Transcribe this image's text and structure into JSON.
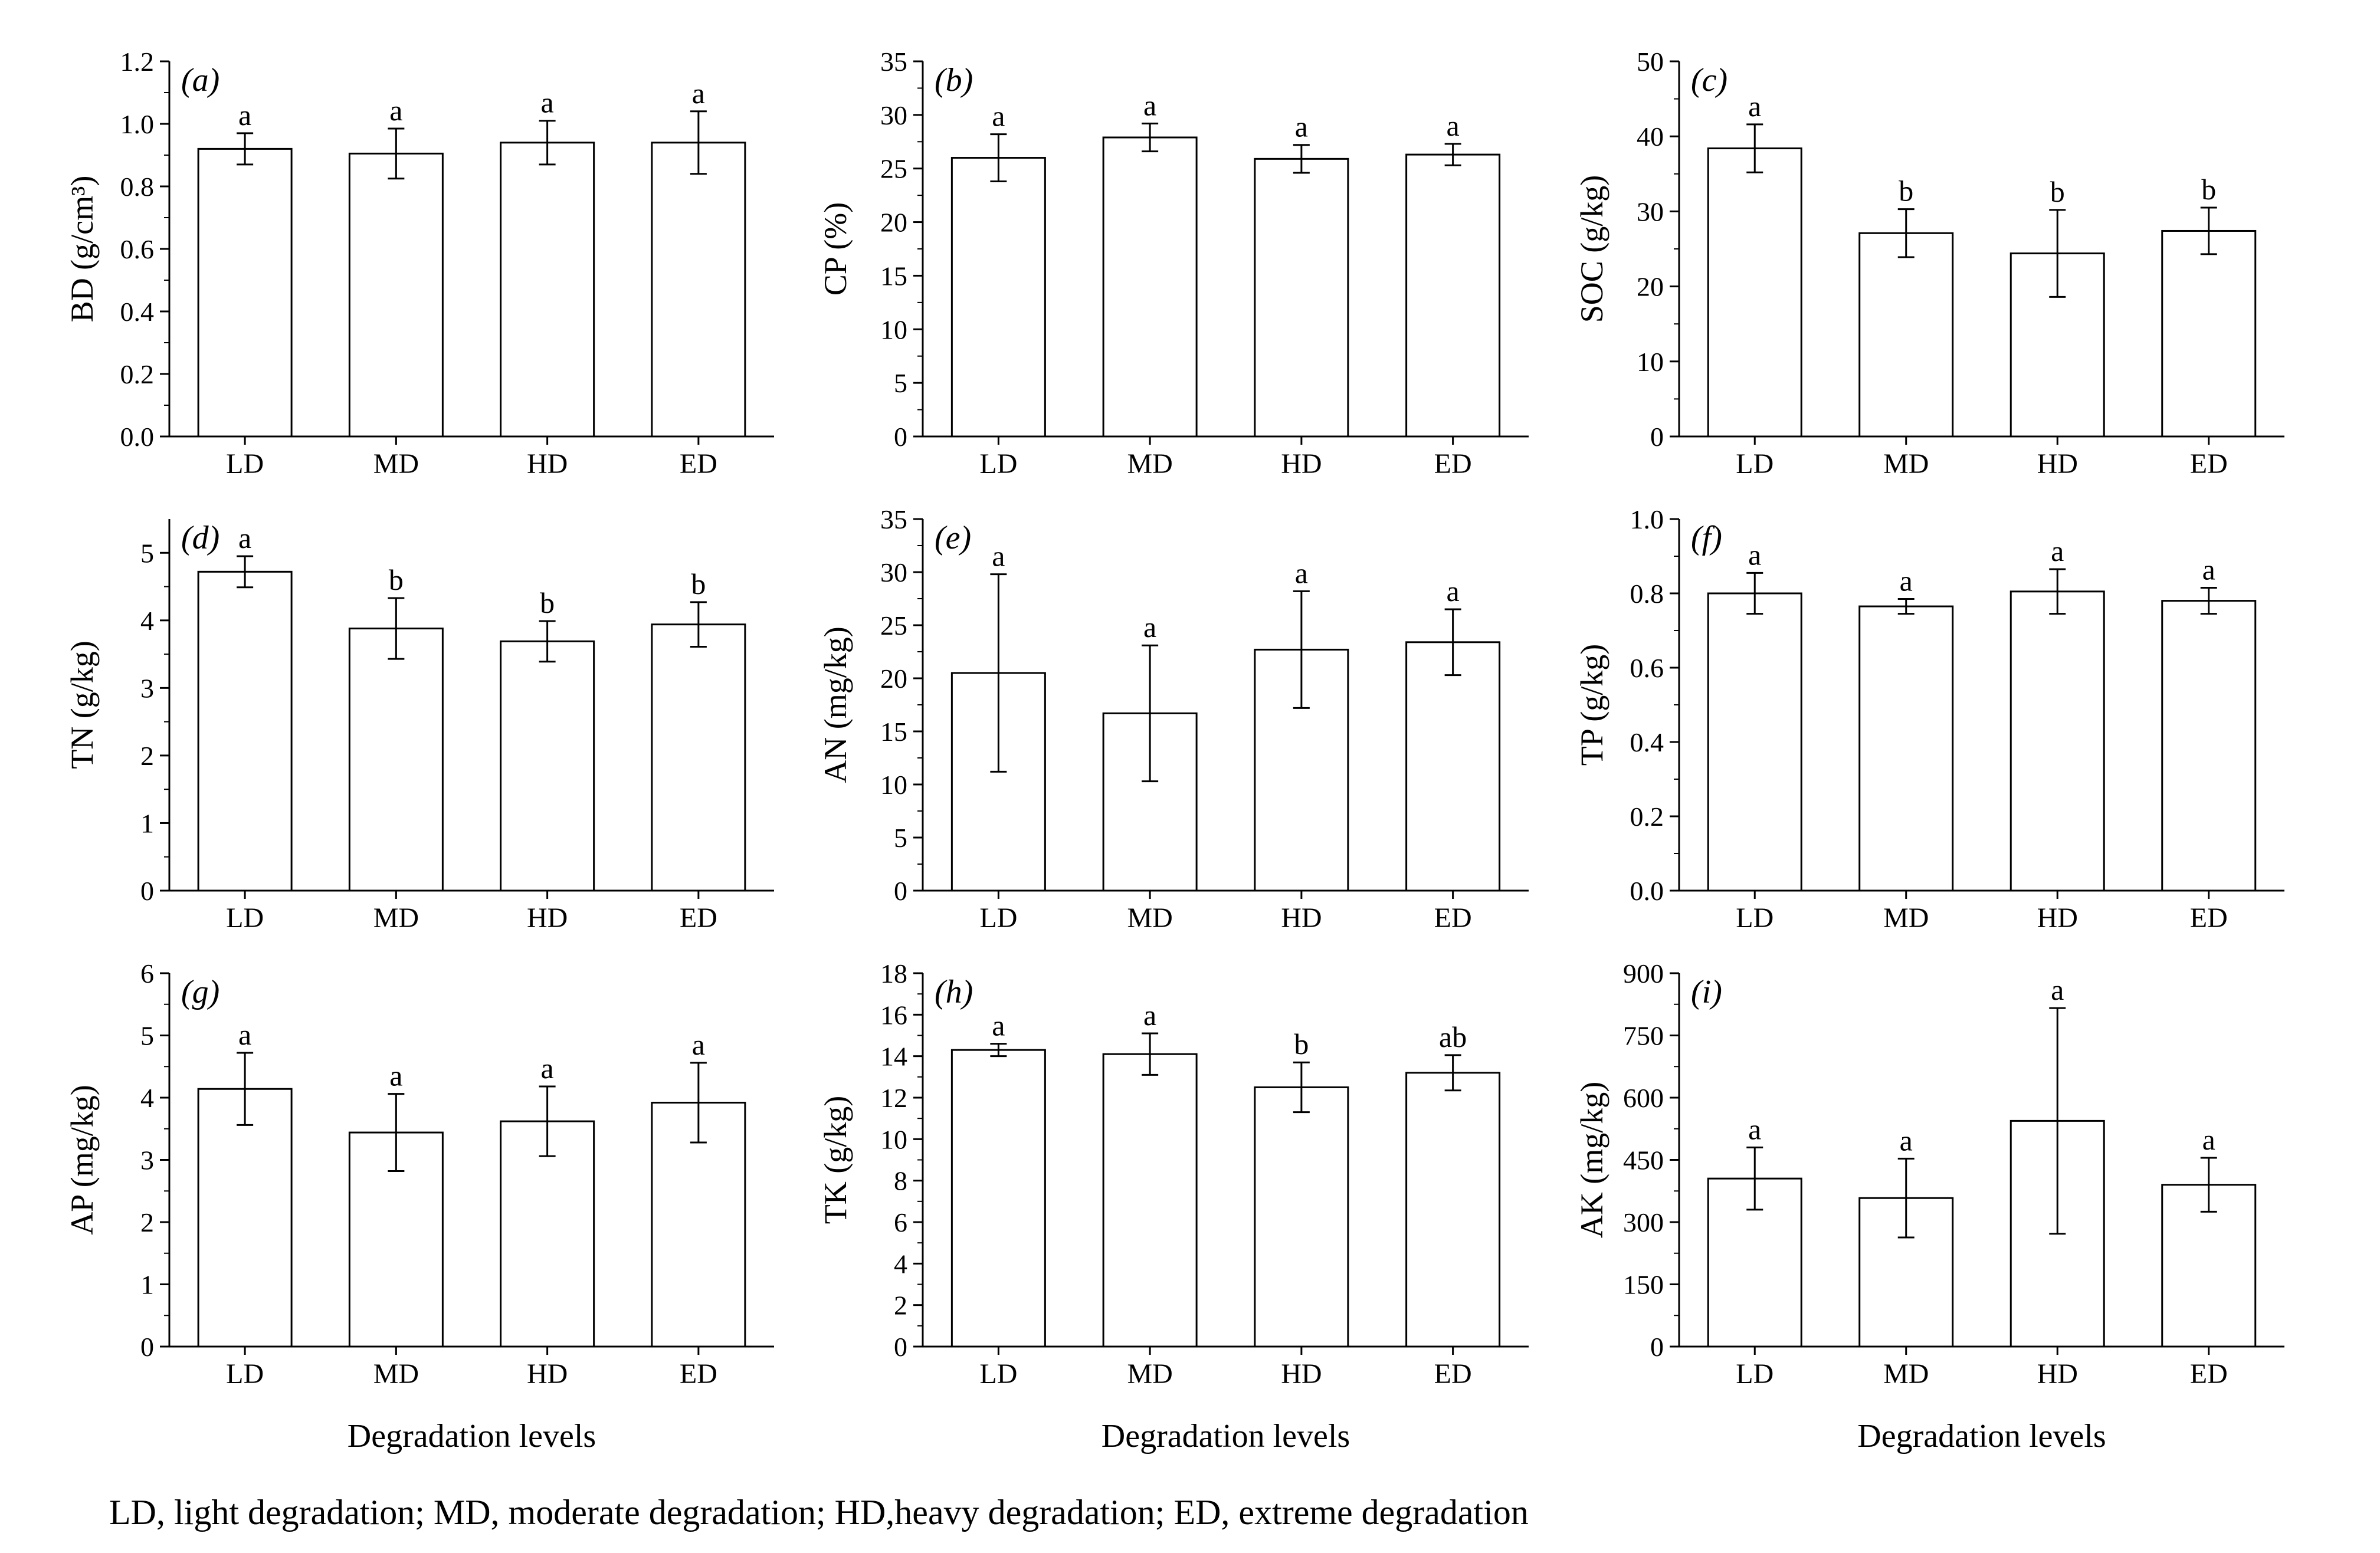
{
  "caption": "LD, light degradation; MD, moderate degradation; HD,heavy degradation; ED, extreme degradation",
  "shared_xlabel": "Degradation levels",
  "colors": {
    "bar_fill": "#ffffff",
    "bar_stroke": "#000000",
    "axis": "#000000"
  },
  "chart_data": [
    {
      "type": "bar",
      "panel": "(a)",
      "ylabel": "BD (g/cm³)",
      "xlabel": "",
      "categories": [
        "LD",
        "MD",
        "HD",
        "ED"
      ],
      "values": [
        0.92,
        0.905,
        0.94,
        0.94
      ],
      "errors": [
        0.05,
        0.08,
        0.07,
        0.1
      ],
      "significance": [
        "a",
        "a",
        "a",
        "a"
      ],
      "ylim": [
        0,
        1.2
      ],
      "yticks": [
        0.0,
        0.2,
        0.4,
        0.6,
        0.8,
        1.0,
        1.2
      ],
      "ytick_labels": [
        "0.0",
        "0.2",
        "0.4",
        "0.6",
        "0.8",
        "1.0",
        "1.2"
      ]
    },
    {
      "type": "bar",
      "panel": "(b)",
      "ylabel": "CP (%)",
      "xlabel": "",
      "categories": [
        "LD",
        "MD",
        "HD",
        "ED"
      ],
      "values": [
        26.0,
        27.9,
        25.9,
        26.3
      ],
      "errors": [
        2.2,
        1.3,
        1.3,
        1.0
      ],
      "significance": [
        "a",
        "a",
        "a",
        "a"
      ],
      "ylim": [
        0,
        35
      ],
      "yticks": [
        0,
        5,
        10,
        15,
        20,
        25,
        30,
        35
      ],
      "ytick_labels": [
        "0",
        "5",
        "10",
        "15",
        "20",
        "25",
        "30",
        "35"
      ]
    },
    {
      "type": "bar",
      "panel": "(c)",
      "ylabel": "SOC (g/kg)",
      "xlabel": "",
      "categories": [
        "LD",
        "MD",
        "HD",
        "ED"
      ],
      "values": [
        38.4,
        27.1,
        24.4,
        27.4
      ],
      "errors": [
        3.2,
        3.2,
        5.8,
        3.1
      ],
      "significance": [
        "a",
        "b",
        "b",
        "b"
      ],
      "ylim": [
        0,
        50
      ],
      "yticks": [
        0,
        10,
        20,
        30,
        40,
        50
      ],
      "ytick_labels": [
        "0",
        "10",
        "20",
        "30",
        "40",
        "50"
      ]
    },
    {
      "type": "bar",
      "panel": "(d)",
      "ylabel": "TN (g/kg)",
      "xlabel": "",
      "categories": [
        "LD",
        "MD",
        "HD",
        "ED"
      ],
      "values": [
        4.72,
        3.88,
        3.69,
        3.94
      ],
      "errors": [
        0.23,
        0.45,
        0.3,
        0.33
      ],
      "significance": [
        "a",
        "b",
        "b",
        "b"
      ],
      "ylim": [
        0,
        5.5
      ],
      "yticks": [
        0,
        1,
        2,
        3,
        4,
        5
      ],
      "ytick_labels": [
        "0",
        "1",
        "2",
        "3",
        "4",
        "5"
      ]
    },
    {
      "type": "bar",
      "panel": "(e)",
      "ylabel": "AN (mg/kg)",
      "xlabel": "",
      "categories": [
        "LD",
        "MD",
        "HD",
        "ED"
      ],
      "values": [
        20.5,
        16.7,
        22.7,
        23.4
      ],
      "errors": [
        9.3,
        6.4,
        5.5,
        3.1
      ],
      "significance": [
        "a",
        "a",
        "a",
        "a"
      ],
      "ylim": [
        0,
        35
      ],
      "yticks": [
        0,
        5,
        10,
        15,
        20,
        25,
        30,
        35
      ],
      "ytick_labels": [
        "0",
        "5",
        "10",
        "15",
        "20",
        "25",
        "30",
        "35"
      ]
    },
    {
      "type": "bar",
      "panel": "(f)",
      "ylabel": "TP (g/kg)",
      "xlabel": "",
      "categories": [
        "LD",
        "MD",
        "HD",
        "ED"
      ],
      "values": [
        0.8,
        0.765,
        0.805,
        0.78
      ],
      "errors": [
        0.055,
        0.02,
        0.06,
        0.035
      ],
      "significance": [
        "a",
        "a",
        "a",
        "a"
      ],
      "ylim": [
        0,
        1.0
      ],
      "yticks": [
        0.0,
        0.2,
        0.4,
        0.6,
        0.8,
        1.0
      ],
      "ytick_labels": [
        "0.0",
        "0.2",
        "0.4",
        "0.6",
        "0.8",
        "1.0"
      ]
    },
    {
      "type": "bar",
      "panel": "(g)",
      "ylabel": "AP (mg/kg)",
      "xlabel": "Degradation levels",
      "categories": [
        "LD",
        "MD",
        "HD",
        "ED"
      ],
      "values": [
        4.14,
        3.44,
        3.62,
        3.92
      ],
      "errors": [
        0.58,
        0.62,
        0.56,
        0.64
      ],
      "significance": [
        "a",
        "a",
        "a",
        "a"
      ],
      "ylim": [
        0,
        6
      ],
      "yticks": [
        0,
        1,
        2,
        3,
        4,
        5,
        6
      ],
      "ytick_labels": [
        "0",
        "1",
        "2",
        "3",
        "4",
        "5",
        "6"
      ]
    },
    {
      "type": "bar",
      "panel": "(h)",
      "ylabel": "TK (g/kg)",
      "xlabel": "Degradation levels",
      "categories": [
        "LD",
        "MD",
        "HD",
        "ED"
      ],
      "values": [
        14.3,
        14.1,
        12.5,
        13.2
      ],
      "errors": [
        0.3,
        1.0,
        1.2,
        0.85
      ],
      "significance": [
        "a",
        "a",
        "b",
        "ab"
      ],
      "ylim": [
        0,
        18
      ],
      "yticks": [
        0,
        2,
        4,
        6,
        8,
        10,
        12,
        14,
        16,
        18
      ],
      "ytick_labels": [
        "0",
        "2",
        "4",
        "6",
        "8",
        "10",
        "12",
        "14",
        "16",
        "18"
      ]
    },
    {
      "type": "bar",
      "panel": "(i)",
      "ylabel": "AK (mg/kg)",
      "xlabel": "Degradation levels",
      "categories": [
        "LD",
        "MD",
        "HD",
        "ED"
      ],
      "values": [
        405,
        358,
        544,
        390
      ],
      "errors": [
        75,
        95,
        272,
        65
      ],
      "significance": [
        "a",
        "a",
        "a",
        "a"
      ],
      "ylim": [
        0,
        900
      ],
      "yticks": [
        0,
        150,
        300,
        450,
        600,
        750,
        900
      ],
      "ytick_labels": [
        "0",
        "150",
        "300",
        "450",
        "600",
        "750",
        "900"
      ]
    }
  ]
}
